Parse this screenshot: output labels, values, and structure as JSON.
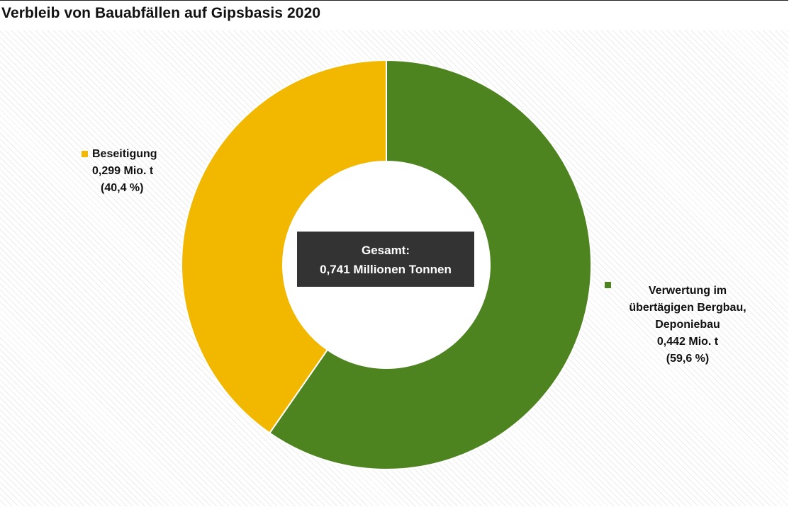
{
  "chart_data": {
    "type": "pie",
    "title": "Verbleib von Bauabfällen auf Gipsbasis 2020",
    "center_label": {
      "line1": "Gesamt:",
      "line2": "0,741 Millionen Tonnen"
    },
    "slices": [
      {
        "name": "Verwertung im übertägigen Bergbau, Deponiebau",
        "name_lines": [
          "Verwertung im",
          "übertägigen Bergbau,",
          "Deponiebau"
        ],
        "value": 0.442,
        "value_label": "0,442 Mio. t",
        "percent": 59.6,
        "percent_label": "(59,6 %)",
        "color": "#4e8420"
      },
      {
        "name": "Beseitigung",
        "name_lines": [
          "Beseitigung"
        ],
        "value": 0.299,
        "value_label": "0,299 Mio. t",
        "percent": 40.4,
        "percent_label": "(40,4 %)",
        "color": "#f2b800"
      }
    ]
  }
}
